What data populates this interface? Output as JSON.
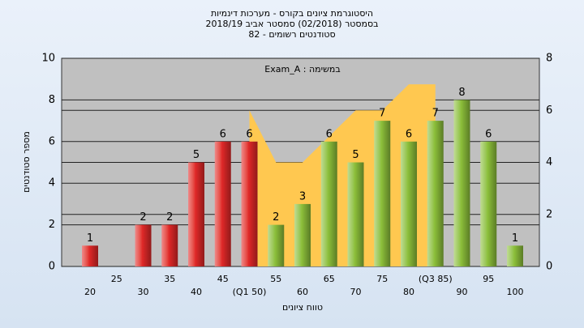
{
  "chart_data": {
    "type": "bar",
    "title": [
      "היסטוגרמת ציונים בקורס - מערכות דינמיות",
      "בסמסטר (02/2018) סמסטר אביב 2018/19",
      "סטודנטים רשומים - 82"
    ],
    "annotation": "במשימה : Exam_A",
    "x_label": "טווח ציונים",
    "y_label": "מספר סטודנטים",
    "categories": [
      "20",
      "25",
      "30",
      "35",
      "40",
      "45",
      "(Q1 50)",
      "55",
      "60",
      "65",
      "70",
      "75",
      "80",
      "(Q3 85)",
      "90",
      "95",
      "100"
    ],
    "series": [
      {
        "type": "bar",
        "values": [
          1,
          0,
          2,
          2,
          5,
          6,
          6,
          2,
          3,
          6,
          5,
          7,
          6,
          7,
          8,
          6,
          1
        ],
        "colors": [
          "#e02828",
          "#e02828",
          "#e02828",
          "#e02828",
          "#e02828",
          "#e02828",
          "#e02828",
          "#8cbf3a",
          "#8cbf3a",
          "#8cbf3a",
          "#8cbf3a",
          "#8cbf3a",
          "#8cbf3a",
          "#8cbf3a",
          "#8cbf3a",
          "#8cbf3a",
          "#8cbf3a"
        ]
      },
      {
        "type": "area",
        "axis": "y2",
        "color": "#ffc850",
        "values": [
          null,
          null,
          null,
          null,
          null,
          null,
          6,
          4,
          4,
          5,
          6,
          6,
          7,
          7,
          null,
          null,
          null
        ]
      }
    ],
    "ylim": [
      0,
      10
    ],
    "yticks": [
      0,
      2,
      4,
      6,
      8,
      10
    ],
    "y2lim": [
      0,
      8
    ],
    "y2ticks": [
      0,
      2,
      4,
      6,
      8
    ],
    "grid": true
  }
}
